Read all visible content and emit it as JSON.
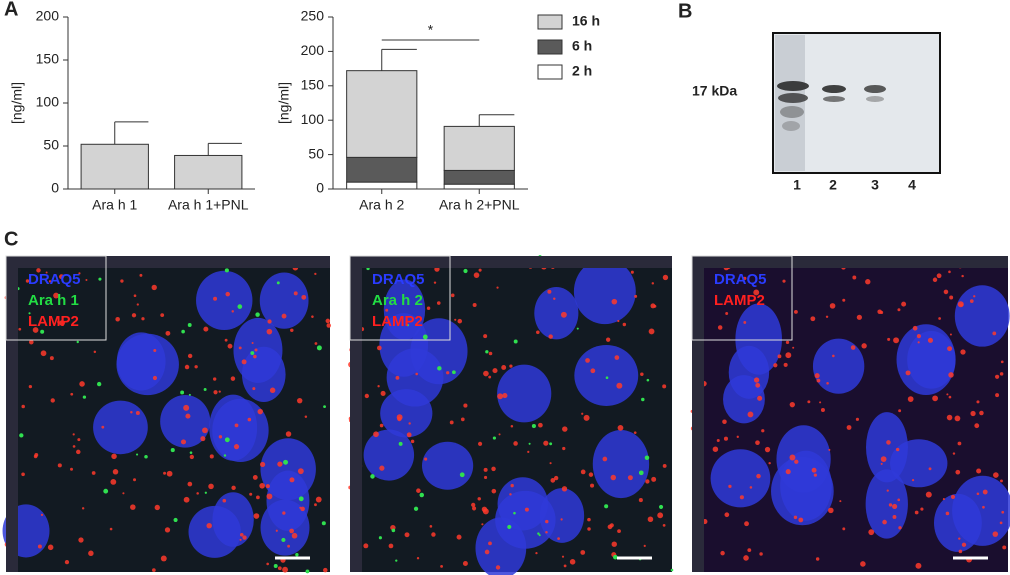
{
  "panels": {
    "a": "A",
    "b": "B",
    "c": "C"
  },
  "chart_data": [
    {
      "type": "bar",
      "y_label": "[ng/ml]",
      "categories": [
        "Ara h 1",
        "Ara h 1+PNL"
      ],
      "values": [
        52,
        39
      ],
      "errors": [
        26,
        14
      ],
      "color": "#d3d3d3",
      "ylim": [
        0,
        200
      ],
      "yticks": [
        0,
        50,
        100,
        150,
        200
      ]
    },
    {
      "type": "stacked_bar",
      "y_label": "[ng/ml]",
      "categories": [
        "Ara h 2",
        "Ara h 2+PNL"
      ],
      "series": [
        {
          "name": "16 h",
          "color": "#d3d3d3",
          "values": [
            126,
            64
          ],
          "errors": [
            31,
            17
          ]
        },
        {
          "name": "6 h",
          "color": "#5a5a5a",
          "values": [
            36,
            20
          ],
          "errors": [
            9,
            null
          ]
        },
        {
          "name": "2 h",
          "color": "#ffffff",
          "values": [
            10,
            7
          ]
        }
      ],
      "annotation": "*",
      "legend": "right",
      "ylim": [
        0,
        250
      ],
      "yticks": [
        0,
        50,
        100,
        150,
        200,
        250
      ]
    }
  ],
  "blot": {
    "marker": "17 kDa",
    "lanes": [
      "1",
      "2",
      "3",
      "4"
    ]
  },
  "micrographs": [
    {
      "labels": [
        {
          "text": "DRAQ5",
          "color": "#2a3cff"
        },
        {
          "text": "Ara h 1",
          "color": "#22dd44"
        },
        {
          "text": "LAMP2",
          "color": "#ff2020"
        }
      ]
    },
    {
      "labels": [
        {
          "text": "DRAQ5",
          "color": "#2a3cff"
        },
        {
          "text": "Ara h 2",
          "color": "#22dd44"
        },
        {
          "text": "LAMP2",
          "color": "#ff2020"
        }
      ]
    },
    {
      "labels": [
        {
          "text": "DRAQ5",
          "color": "#2a3cff"
        },
        {
          "text": "LAMP2",
          "color": "#ff2020"
        }
      ]
    }
  ]
}
